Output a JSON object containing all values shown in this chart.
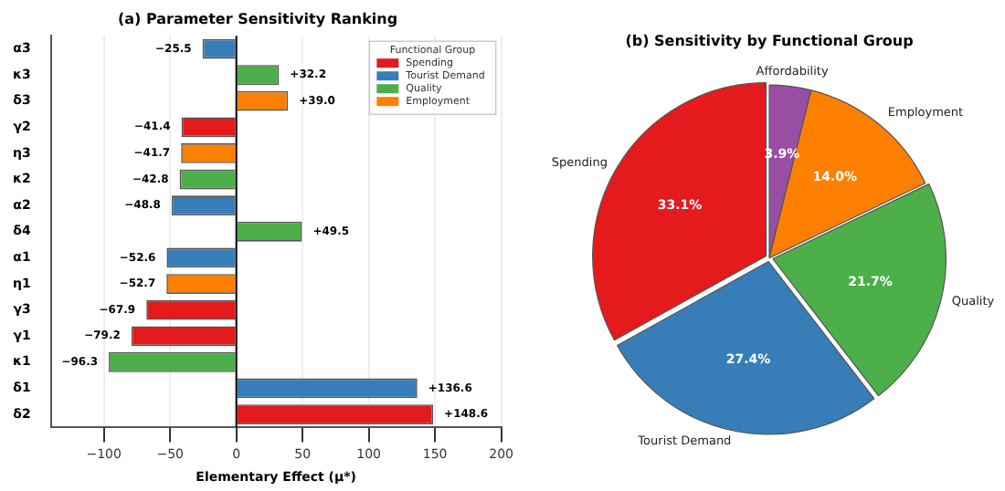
{
  "chart_data": [
    {
      "type": "bar",
      "orientation": "horizontal",
      "title": "(a) Parameter Sensitivity Ranking",
      "xlabel": "Elementary Effect (μ*)",
      "legend_title": "Functional Group",
      "legend": "top right",
      "grid": "x",
      "categories": [
        "α3",
        "κ3",
        "δ3",
        "γ2",
        "η3",
        "κ2",
        "α2",
        "δ4",
        "α1",
        "η1",
        "γ3",
        "γ1",
        "κ1",
        "δ1",
        "δ2"
      ],
      "series": [
        {
          "name": "Spending",
          "color": "#e41a1c",
          "values": [
            null,
            null,
            null,
            -41.4,
            null,
            null,
            null,
            null,
            null,
            null,
            -67.9,
            -79.2,
            null,
            null,
            148.6
          ],
          "value_labels": [
            null,
            null,
            null,
            "−41.4",
            null,
            null,
            null,
            null,
            null,
            null,
            "−67.9",
            "−79.2",
            null,
            null,
            "+148.6"
          ]
        },
        {
          "name": "Tourist Demand",
          "color": "#377eb8",
          "values": [
            -25.5,
            null,
            null,
            null,
            null,
            null,
            -48.8,
            null,
            -52.6,
            null,
            null,
            null,
            null,
            136.6,
            null
          ],
          "value_labels": [
            "−25.5",
            null,
            null,
            null,
            null,
            null,
            "−48.8",
            null,
            "−52.6",
            null,
            null,
            null,
            null,
            "+136.6",
            null
          ]
        },
        {
          "name": "Quality",
          "color": "#4daf4a",
          "values": [
            null,
            32.2,
            null,
            null,
            null,
            -42.8,
            null,
            49.5,
            null,
            null,
            null,
            null,
            -96.3,
            null,
            null
          ],
          "value_labels": [
            null,
            "+32.2",
            null,
            null,
            null,
            "−42.8",
            null,
            "+49.5",
            null,
            null,
            null,
            null,
            "−96.3",
            null,
            null
          ]
        },
        {
          "name": "Employment",
          "color": "#ff7f00",
          "values": [
            null,
            null,
            39.0,
            null,
            -41.7,
            null,
            null,
            null,
            null,
            -52.7,
            null,
            null,
            null,
            null,
            null
          ],
          "value_labels": [
            null,
            null,
            "+39.0",
            null,
            "−41.7",
            null,
            null,
            null,
            null,
            "−52.7",
            null,
            null,
            null,
            null,
            null
          ]
        }
      ],
      "xlim": [
        -140,
        200
      ],
      "xticks": [
        {
          "value": -100,
          "label": "−100"
        },
        {
          "value": -50,
          "label": "−50"
        },
        0,
        50,
        100,
        150,
        200
      ],
      "ref_lines": [
        {
          "axis": "x",
          "value": 0,
          "color": "#000000"
        }
      ]
    },
    {
      "type": "pie",
      "title": "(b) Sensitivity by Functional Group",
      "categories": [
        "Spending",
        "Tourist Demand",
        "Quality",
        "Employment",
        "Affordability"
      ],
      "values": [
        33.1,
        27.4,
        21.7,
        14.0,
        3.9
      ],
      "colors": [
        "#e41a1c",
        "#377eb8",
        "#4daf4a",
        "#ff7f00",
        "#984ea3"
      ],
      "value_labels": [
        "33.1%",
        "27.4%",
        "21.7%",
        "14.0%",
        "3.9%"
      ]
    }
  ]
}
